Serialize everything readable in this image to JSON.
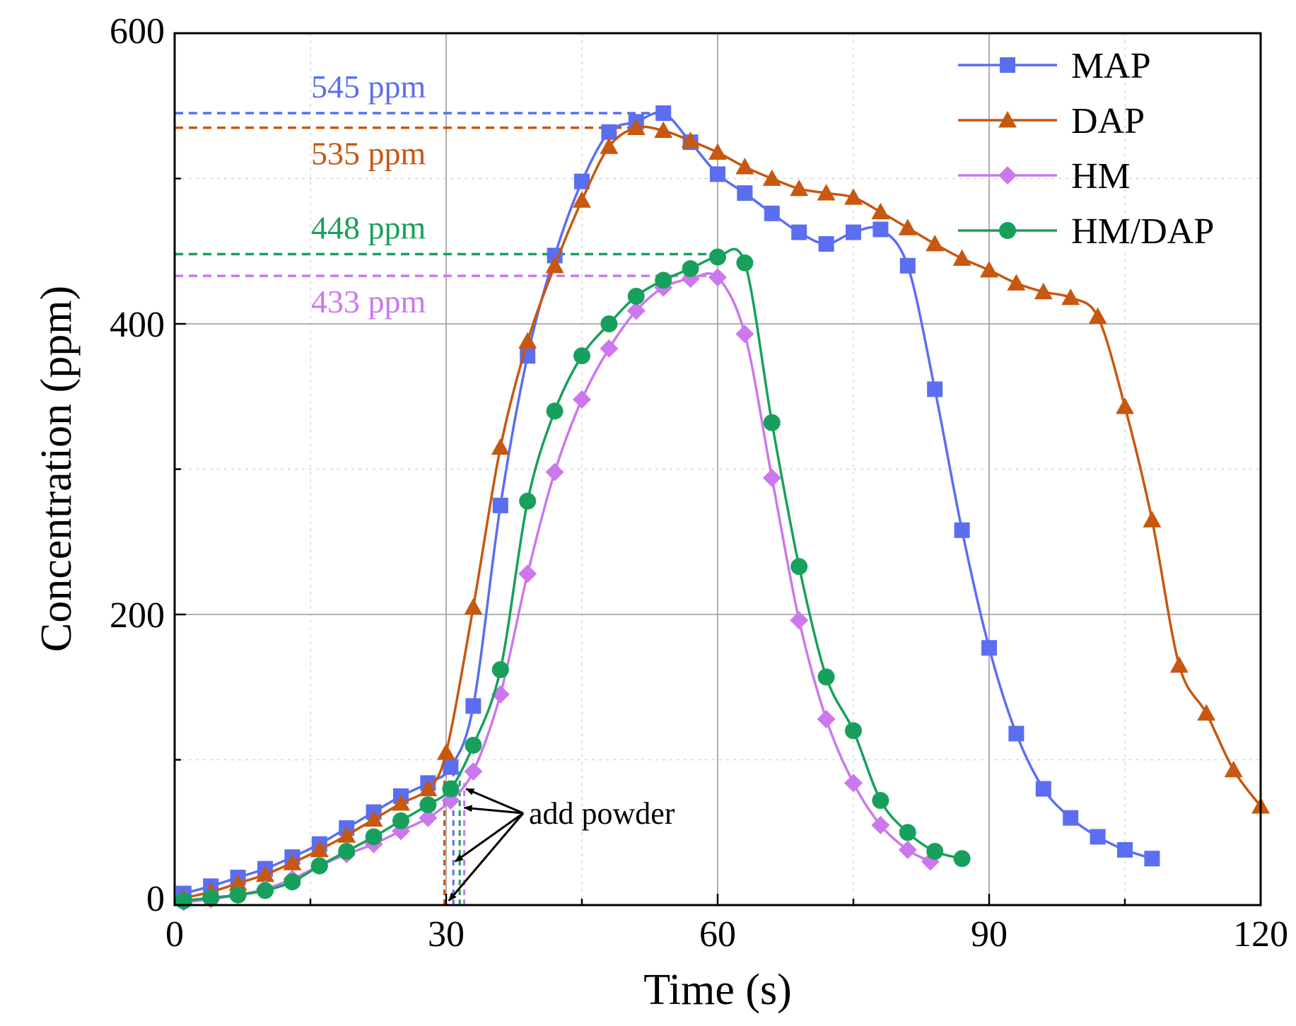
{
  "chart_data": {
    "type": "line",
    "title": "",
    "xlabel": "Time (s)",
    "ylabel": "Concentration (ppm)",
    "xlim": [
      0,
      120
    ],
    "ylim": [
      0,
      600
    ],
    "x_ticks": [
      0,
      30,
      60,
      90,
      120
    ],
    "y_ticks": [
      0,
      200,
      400,
      600
    ],
    "x_tick_labels": [
      "0",
      "30",
      "60",
      "90",
      "120"
    ],
    "y_tick_labels": [
      "0",
      "200",
      "400",
      "600"
    ],
    "grid": true,
    "legend_position": "top-right",
    "series": [
      {
        "name": "MAP",
        "color": "#5b6ef0",
        "marker": "square",
        "x": [
          1,
          4,
          7,
          10,
          13,
          16,
          19,
          22,
          25,
          28,
          30.5,
          33,
          36,
          39,
          42,
          45,
          48,
          51,
          54,
          57,
          60,
          63,
          66,
          69,
          72,
          75,
          78,
          81,
          84,
          87,
          90,
          93,
          96,
          99,
          102,
          105,
          108
        ],
        "y": [
          8,
          13,
          19,
          25,
          33,
          42,
          53,
          64,
          75,
          84,
          95,
          137,
          275,
          378,
          447,
          498,
          532,
          539,
          545,
          525,
          503,
          490,
          476,
          463,
          455,
          463,
          465,
          440,
          355,
          258,
          177,
          118,
          80,
          60,
          47,
          38,
          32
        ]
      },
      {
        "name": "DAP",
        "color": "#c8570f",
        "marker": "triangle",
        "x": [
          1,
          4,
          7,
          10,
          13,
          16,
          19,
          22,
          25,
          28,
          30,
          33,
          36,
          39,
          42,
          45,
          48,
          51,
          54,
          57,
          60,
          63,
          66,
          69,
          72,
          75,
          78,
          81,
          84,
          87,
          90,
          93,
          96,
          99,
          102,
          105,
          108,
          111,
          114,
          117,
          120
        ],
        "y": [
          5,
          9,
          15,
          21,
          29,
          38,
          48,
          59,
          70,
          80,
          105,
          205,
          315,
          388,
          440,
          485,
          522,
          535,
          533,
          526,
          518,
          508,
          500,
          493,
          490,
          487,
          477,
          466,
          455,
          445,
          437,
          428,
          422,
          418,
          405,
          343,
          265,
          165,
          132,
          93,
          68
        ]
      },
      {
        "name": "HM",
        "color": "#cc77ee",
        "marker": "diamond",
        "x": [
          1,
          4,
          7,
          10,
          13,
          16,
          19,
          22,
          25,
          28,
          30.5,
          33,
          36,
          39,
          42,
          45,
          48,
          51,
          54,
          57,
          60,
          63,
          66,
          69,
          72,
          75,
          78,
          81,
          83.5
        ],
        "y": [
          2,
          4,
          7,
          11,
          18,
          27,
          35,
          42,
          51,
          60,
          72,
          92,
          145,
          228,
          298,
          348,
          383,
          409,
          425,
          431,
          432,
          393,
          294,
          196,
          128,
          84,
          55,
          38,
          30
        ]
      },
      {
        "name": "HM/DAP",
        "color": "#17a05c",
        "marker": "circle",
        "x": [
          1,
          4,
          7,
          10,
          13,
          16,
          19,
          22,
          25,
          28,
          30.5,
          33,
          36,
          39,
          42,
          45,
          48,
          51,
          54,
          57,
          60,
          63,
          66,
          69,
          72,
          75,
          78,
          81,
          84,
          87
        ],
        "y": [
          3,
          5,
          7,
          10,
          16,
          27,
          37,
          47,
          58,
          69,
          80,
          110,
          162,
          278,
          340,
          378,
          400,
          419,
          430,
          438,
          446,
          442,
          332,
          233,
          157,
          120,
          72,
          50,
          37,
          32
        ]
      }
    ],
    "peak_annotations": [
      {
        "label": "545 ppm",
        "value": 545,
        "series": "MAP"
      },
      {
        "label": "535 ppm",
        "value": 535,
        "series": "DAP"
      },
      {
        "label": "448 ppm",
        "value": 448,
        "series": "HM/DAP"
      },
      {
        "label": "433 ppm",
        "value": 433,
        "series": "HM"
      }
    ],
    "powder_annotation": {
      "label": "add powder",
      "x_values": [
        29.8,
        30.8,
        31.5,
        32.0
      ]
    }
  }
}
